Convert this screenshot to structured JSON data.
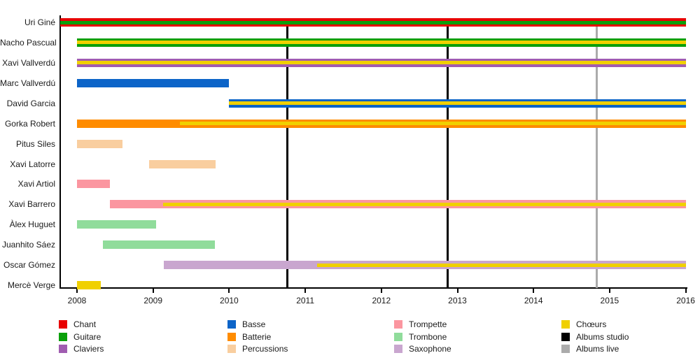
{
  "chart_data": {
    "type": "timeline",
    "title": "",
    "x_axis": {
      "min": 2007.78,
      "max": 2016,
      "ticks": [
        2008,
        2009,
        2010,
        2011,
        2012,
        2013,
        2014,
        2015,
        2016
      ]
    },
    "colors": {
      "Chant": "#E80000",
      "Guitare": "#0AA00A",
      "Claviers": "#A05CB0",
      "Basse": "#0C64C8",
      "Batterie": "#FF8C00",
      "Percussions": "#F9CE9F",
      "Trompette": "#FB96A0",
      "Trombone": "#90DC9B",
      "Saxophone": "#C9A6CF",
      "Chœurs": "#F0D000",
      "Albums studio": "#000000",
      "Albums live": "#ABABAB"
    },
    "members": [
      {
        "name": "Uri Giné",
        "segments": [
          {
            "instrument": "Chant",
            "layer": "bar",
            "start": 2007.78,
            "end": 2016
          },
          {
            "instrument": "Guitare",
            "layer": "stripe",
            "start": 2007.78,
            "end": 2016
          }
        ]
      },
      {
        "name": "Nacho Pascual",
        "segments": [
          {
            "instrument": "Guitare",
            "layer": "bar",
            "start": 2008,
            "end": 2016
          },
          {
            "instrument": "Chœurs",
            "layer": "stripe",
            "start": 2008,
            "end": 2016
          }
        ]
      },
      {
        "name": "Xavi Vallverdú",
        "segments": [
          {
            "instrument": "Claviers",
            "layer": "bar",
            "start": 2008,
            "end": 2016
          },
          {
            "instrument": "Chœurs",
            "layer": "stripe",
            "start": 2008,
            "end": 2016
          }
        ]
      },
      {
        "name": "Marc Vallverdú",
        "segments": [
          {
            "instrument": "Basse",
            "layer": "bar",
            "start": 2008,
            "end": 2010
          }
        ]
      },
      {
        "name": "David Garcia",
        "segments": [
          {
            "instrument": "Basse",
            "layer": "bar",
            "start": 2010,
            "end": 2016
          },
          {
            "instrument": "Chœurs",
            "layer": "stripe",
            "start": 2010,
            "end": 2016
          }
        ]
      },
      {
        "name": "Gorka Robert",
        "segments": [
          {
            "instrument": "Batterie",
            "layer": "bar",
            "start": 2008,
            "end": 2016
          },
          {
            "instrument": "Chœurs",
            "layer": "stripe",
            "start": 2009.35,
            "end": 2016
          }
        ]
      },
      {
        "name": "Pitus Siles",
        "segments": [
          {
            "instrument": "Percussions",
            "layer": "bar",
            "start": 2008,
            "end": 2008.6
          }
        ]
      },
      {
        "name": "Xavi Latorre",
        "segments": [
          {
            "instrument": "Percussions",
            "layer": "bar",
            "start": 2008.95,
            "end": 2009.82
          }
        ]
      },
      {
        "name": "Xavi Artiol",
        "segments": [
          {
            "instrument": "Trompette",
            "layer": "bar",
            "start": 2008,
            "end": 2008.43
          }
        ]
      },
      {
        "name": "Xavi Barrero",
        "segments": [
          {
            "instrument": "Trompette",
            "layer": "bar",
            "start": 2008.43,
            "end": 2016
          },
          {
            "instrument": "Chœurs",
            "layer": "stripe",
            "start": 2009.13,
            "end": 2016
          }
        ]
      },
      {
        "name": "Àlex Huguet",
        "segments": [
          {
            "instrument": "Trombone",
            "layer": "bar",
            "start": 2008,
            "end": 2009.04
          }
        ]
      },
      {
        "name": "Juanhito Sáez",
        "segments": [
          {
            "instrument": "Trombone",
            "layer": "bar",
            "start": 2008.34,
            "end": 2009.81
          }
        ]
      },
      {
        "name": "Oscar Gómez",
        "segments": [
          {
            "instrument": "Saxophone",
            "layer": "bar",
            "start": 2009.14,
            "end": 2016
          },
          {
            "instrument": "Chœurs",
            "layer": "stripe",
            "start": 2011.16,
            "end": 2016
          }
        ]
      },
      {
        "name": "Mercè Verge",
        "segments": [
          {
            "instrument": "Chœurs",
            "layer": "bar",
            "start": 2008,
            "end": 2008.31
          }
        ]
      }
    ],
    "events": [
      {
        "label": "Albums studio",
        "year": 2010.76
      },
      {
        "label": "Albums studio",
        "year": 2012.87
      },
      {
        "label": "Albums live",
        "year": 2014.83
      }
    ],
    "legend": {
      "columns": [
        [
          "Chant",
          "Guitare",
          "Claviers"
        ],
        [
          "Basse",
          "Batterie",
          "Percussions"
        ],
        [
          "Trompette",
          "Trombone",
          "Saxophone"
        ],
        [
          "Chœurs",
          "Albums studio",
          "Albums live"
        ]
      ]
    }
  }
}
